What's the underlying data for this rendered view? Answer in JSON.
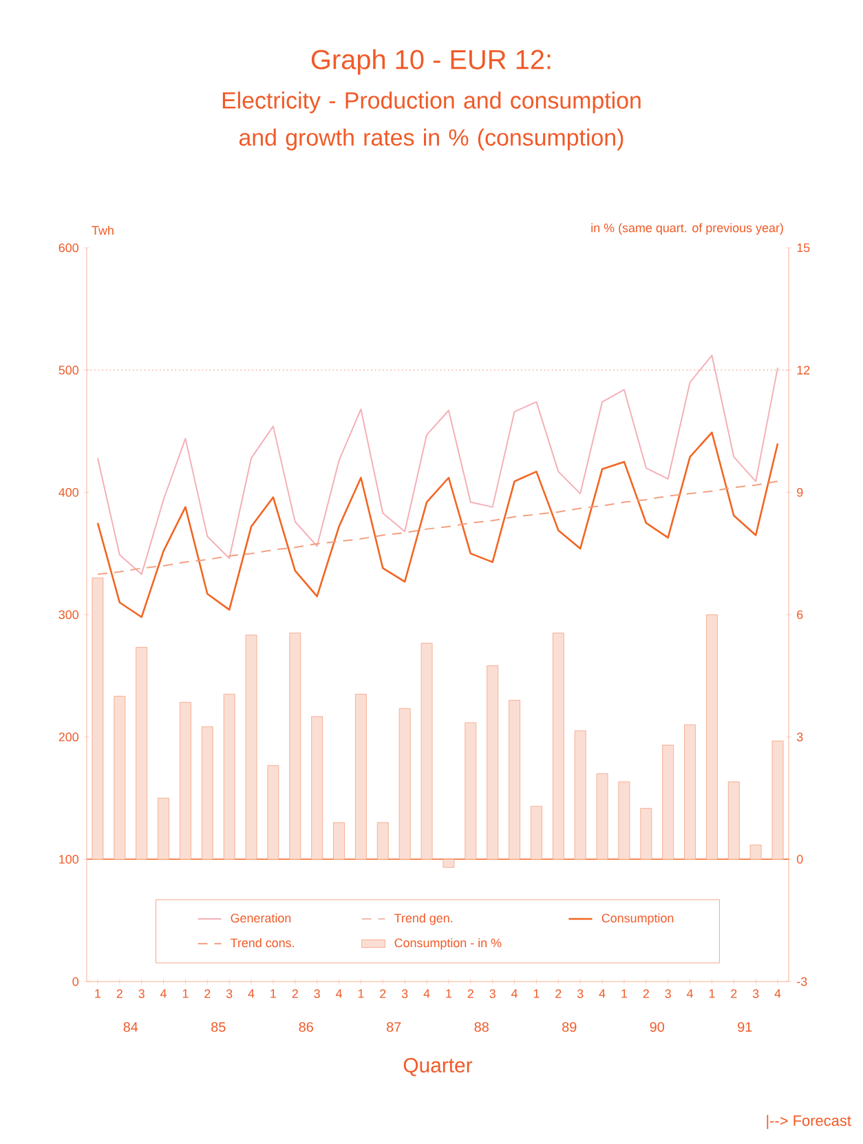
{
  "chart_data": {
    "type": "line",
    "title": "Graph 10 - EUR 12:",
    "subtitle": "Electricity - Production and consumption and growth rates in % (consumption)",
    "xlabel": "Quarter",
    "ylabel": "Twh",
    "y2label": "in % (same quart. of previous year)",
    "categories": [
      "1",
      "2",
      "3",
      "4",
      "1",
      "2",
      "3",
      "4",
      "1",
      "2",
      "3",
      "4",
      "1",
      "2",
      "3",
      "4",
      "1",
      "2",
      "3",
      "4",
      "1",
      "2",
      "3",
      "4",
      "1",
      "2",
      "3",
      "4",
      "1",
      "2",
      "3",
      "4"
    ],
    "annotations": [
      "84",
      "85",
      "86",
      "87",
      "88",
      "89",
      "90",
      "91",
      "|--> Forecast"
    ],
    "ylim": [
      0,
      600
    ],
    "yticks": [
      0,
      100,
      200,
      300,
      400,
      500,
      600
    ],
    "y2lim": [
      -3,
      15
    ],
    "y2ticks": [
      -3,
      0,
      3,
      6,
      9,
      12,
      15
    ],
    "legend": "bottom",
    "marker": "none",
    "ref_lines": [
      {
        "axis": "y",
        "value": 500,
        "color": "#f4b8a0",
        "line_style": "dotted"
      },
      {
        "axis": "y2",
        "value": 0,
        "color": "#f26522",
        "line_style": "solid"
      }
    ],
    "series": [
      {
        "name": "Generation",
        "color": "#f4b0b8",
        "line_style": "solid",
        "values": [
          428,
          349,
          333,
          394,
          444,
          364,
          346,
          428,
          454,
          376,
          356,
          426,
          468,
          383,
          368,
          447,
          467,
          392,
          388,
          466,
          474,
          417,
          399,
          474,
          484,
          420,
          411,
          490,
          512,
          429,
          409,
          502
        ]
      },
      {
        "name": "Trend gen.",
        "color": "#f0b8b0",
        "line_style": "dashed",
        "values": [
          null,
          null,
          null,
          null,
          null,
          null,
          null,
          null,
          null,
          null,
          null,
          null,
          null,
          null,
          null,
          null,
          null,
          null,
          null,
          null,
          null,
          null,
          null,
          null,
          null,
          null,
          null,
          null,
          null,
          null,
          null,
          null
        ]
      },
      {
        "name": "Consumption",
        "color": "#f26522",
        "line_style": "solid",
        "values": [
          375,
          310,
          298,
          352,
          388,
          317,
          304,
          372,
          396,
          336,
          315,
          372,
          412,
          338,
          327,
          392,
          412,
          350,
          343,
          409,
          417,
          369,
          354,
          419,
          425,
          375,
          363,
          429,
          449,
          381,
          365,
          440
        ]
      },
      {
        "name": "Trend cons.",
        "color": "#f4a080",
        "line_style": "dashed",
        "values": [
          333,
          335,
          338,
          340,
          343,
          345,
          348,
          350,
          353,
          355,
          358,
          360,
          362,
          365,
          367,
          370,
          372,
          375,
          377,
          380,
          382,
          384,
          387,
          389,
          392,
          394,
          397,
          399,
          401,
          404,
          406,
          409
        ]
      },
      {
        "name": "Consumption - in %",
        "type": "bar",
        "axis": "y2",
        "color": "#f4a080",
        "values": [
          6.9,
          4.0,
          5.2,
          1.5,
          3.85,
          3.25,
          4.05,
          5.5,
          2.3,
          5.55,
          3.5,
          0.9,
          4.05,
          0.9,
          3.7,
          5.3,
          -0.2,
          3.35,
          4.75,
          3.9,
          1.3,
          5.55,
          3.15,
          2.1,
          1.9,
          1.25,
          2.8,
          3.3,
          6.0,
          1.9,
          0.35,
          2.9
        ]
      }
    ]
  }
}
